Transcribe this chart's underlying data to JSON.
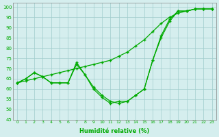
{
  "xlabel": "Humidité relative (%)",
  "bg_color": "#d5eeee",
  "grid_color": "#a0cccc",
  "line_color": "#00aa00",
  "xlim": [
    -0.5,
    23.5
  ],
  "ylim": [
    45,
    102
  ],
  "xticks": [
    0,
    1,
    2,
    3,
    4,
    5,
    6,
    7,
    8,
    9,
    10,
    11,
    12,
    13,
    14,
    15,
    16,
    17,
    18,
    19,
    20,
    21,
    22,
    23
  ],
  "yticks": [
    45,
    50,
    55,
    60,
    65,
    70,
    75,
    80,
    85,
    90,
    95,
    100
  ],
  "line1_x": [
    0,
    1,
    2,
    3,
    4,
    5,
    6,
    7,
    8,
    9,
    10,
    11,
    12,
    13,
    14,
    15,
    16,
    17,
    18,
    19,
    20,
    21,
    22,
    23
  ],
  "line1_y": [
    63,
    65,
    68,
    66,
    63,
    63,
    63,
    73,
    67,
    60,
    56,
    53,
    54,
    54,
    57,
    60,
    74,
    85,
    93,
    98,
    98,
    99,
    99,
    99
  ],
  "line2_x": [
    0,
    1,
    2,
    3,
    4,
    5,
    6,
    7,
    8,
    9,
    10,
    11,
    12,
    13,
    14,
    15,
    16,
    17,
    18,
    19,
    20,
    21,
    22,
    23
  ],
  "line2_y": [
    63,
    64,
    65,
    66,
    67,
    68,
    69,
    70,
    71,
    72,
    73,
    74,
    76,
    78,
    81,
    84,
    88,
    92,
    95,
    97,
    98,
    99,
    99,
    99
  ],
  "line3_x": [
    0,
    1,
    2,
    3,
    4,
    5,
    6,
    7,
    8,
    9,
    10,
    11,
    12,
    13,
    14,
    15,
    16,
    17,
    18,
    19,
    20,
    21,
    22,
    23
  ],
  "line3_y": [
    63,
    65,
    68,
    66,
    63,
    63,
    63,
    72,
    67,
    61,
    57,
    54,
    53,
    54,
    57,
    60,
    74,
    86,
    94,
    98,
    98,
    99,
    99,
    99
  ]
}
